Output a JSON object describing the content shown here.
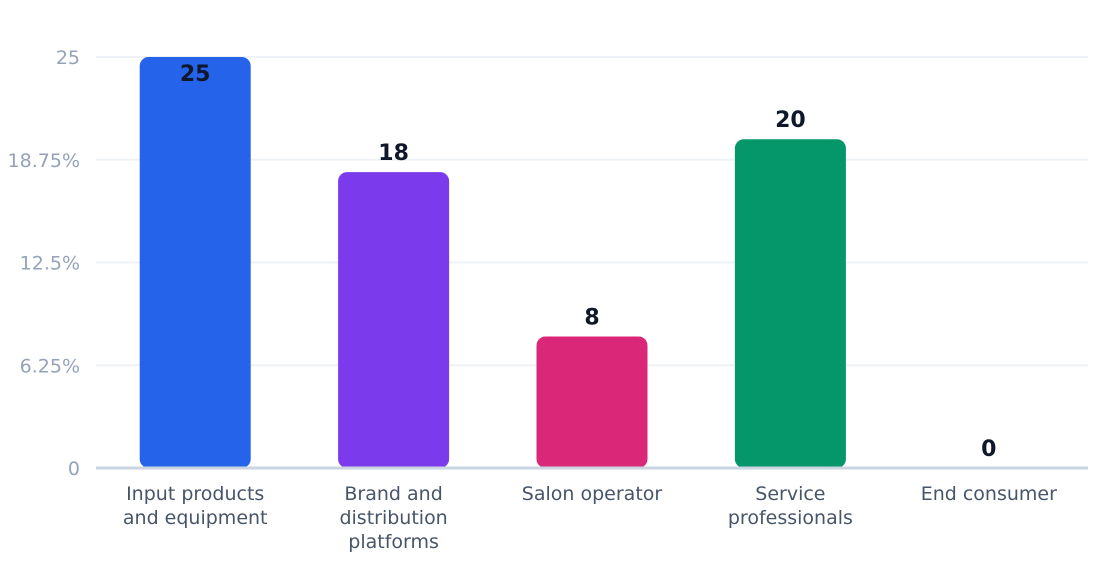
{
  "chart_data": {
    "type": "bar",
    "categories": [
      [
        "Input products",
        "and equipment"
      ],
      [
        "Brand and",
        "distribution",
        "platforms"
      ],
      [
        "Salon operator"
      ],
      [
        "Service",
        "professionals"
      ],
      [
        "End consumer"
      ]
    ],
    "values": [
      25,
      18,
      8,
      20,
      0
    ],
    "value_labels": [
      "25",
      "18",
      "8",
      "20",
      "0"
    ],
    "colors": [
      "#2563eb",
      "#7c3aed",
      "#db2777",
      "#059669",
      "#d97706"
    ],
    "y_ticks": [
      0,
      6.25,
      12.5,
      18.75,
      25
    ],
    "y_tick_labels": [
      "0",
      "6.25%",
      "12.5%",
      "18.75%",
      "25"
    ],
    "ylim": [
      0,
      25
    ],
    "grid": true,
    "title": "",
    "xlabel": "",
    "ylabel": ""
  }
}
